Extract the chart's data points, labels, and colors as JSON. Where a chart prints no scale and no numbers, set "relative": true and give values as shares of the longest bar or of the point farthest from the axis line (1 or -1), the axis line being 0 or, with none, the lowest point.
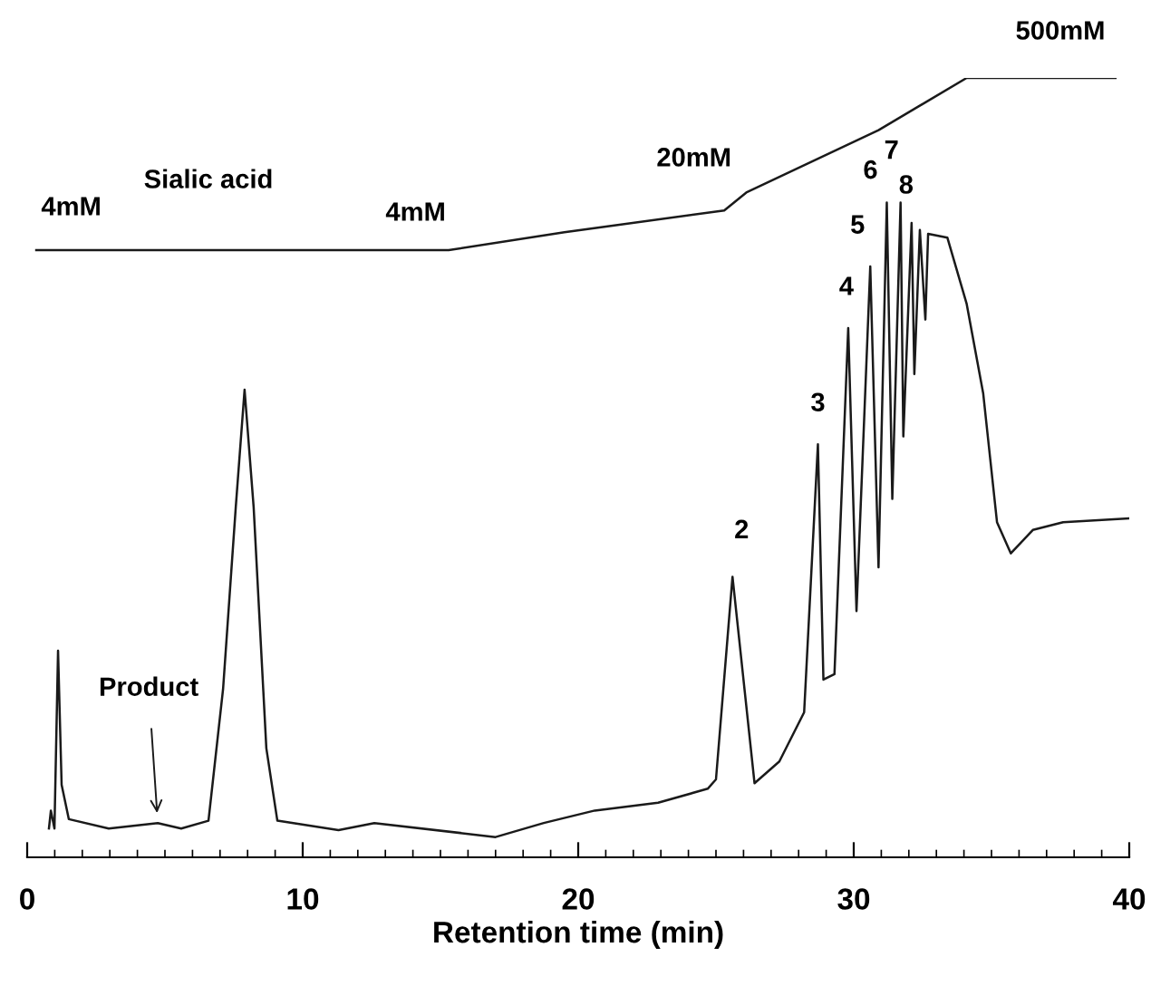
{
  "chart_data": {
    "type": "line",
    "relative": true,
    "xlabel": "Retention time (min)",
    "xlim": [
      0,
      40
    ],
    "xticks": [
      0,
      10,
      20,
      30,
      40
    ],
    "grid": false,
    "legend": false,
    "marker": "none",
    "line_style": "solid",
    "series": [
      {
        "color": "#1a1a1a",
        "x": [
          0.79,
          0.86,
          0.99,
          1.12,
          1.25,
          1.51,
          2.96,
          4.74,
          5.59,
          6.58,
          7.11,
          7.57,
          7.89,
          8.22,
          8.68,
          9.08,
          11.3,
          12.6,
          17.0,
          18.75,
          20.6,
          22.9,
          24.7,
          25.0,
          25.6,
          26.4,
          27.3,
          28.2,
          28.7,
          28.9,
          29.3,
          29.8,
          30.1,
          30.6,
          30.9,
          31.2,
          31.4,
          31.7,
          31.8,
          32.1,
          32.2,
          32.4,
          32.6,
          32.7,
          33.4,
          34.1,
          34.7,
          35.2,
          35.7,
          36.5,
          37.6,
          40.0
        ],
        "values": [
          0.037,
          0.06,
          0.037,
          0.265,
          0.093,
          0.049,
          0.037,
          0.044,
          0.037,
          0.047,
          0.216,
          0.449,
          0.6,
          0.449,
          0.14,
          0.047,
          0.035,
          0.044,
          0.026,
          0.044,
          0.06,
          0.07,
          0.088,
          0.1,
          0.36,
          0.095,
          0.123,
          0.186,
          0.53,
          0.228,
          0.235,
          0.679,
          0.316,
          0.758,
          0.372,
          0.84,
          0.46,
          0.84,
          0.54,
          0.814,
          0.62,
          0.805,
          0.69,
          0.8,
          0.795,
          0.71,
          0.595,
          0.43,
          0.39,
          0.42,
          0.43,
          0.435
        ]
      },
      {
        "color": "#1a1a1a",
        "x": [
          0.33,
          15.3,
          19.5,
          25.3,
          26.1,
          30.9,
          34.1,
          39.5
        ],
        "values": [
          0.779,
          0.779,
          0.802,
          0.83,
          0.853,
          0.933,
          1.0,
          1.0
        ]
      }
    ],
    "annotations": [
      {
        "text": "4mM",
        "x": 1.6,
        "y": 0.779
      },
      {
        "text": "4mM",
        "x": 14.1,
        "y": 0.779
      },
      {
        "text": "20mM",
        "x": 24.2,
        "y": 0.828
      },
      {
        "text": "500mM",
        "x": 37.5,
        "y": 1.0
      },
      "Sialic acid",
      {
        "text": "Product",
        "x": 4.74,
        "y": 0.044
      },
      {
        "text": "2",
        "x": 25.6,
        "y": 0.36
      },
      {
        "text": "3",
        "x": 28.7,
        "y": 0.53
      },
      {
        "text": "4",
        "x": 29.8,
        "y": 0.679
      },
      {
        "text": "5",
        "x": 30.6,
        "y": 0.758
      },
      {
        "text": "6",
        "x": 31.2,
        "y": 0.84
      },
      {
        "text": "7",
        "x": 31.7,
        "y": 0.84
      },
      {
        "text": "8",
        "x": 32.1,
        "y": 0.814
      }
    ]
  }
}
